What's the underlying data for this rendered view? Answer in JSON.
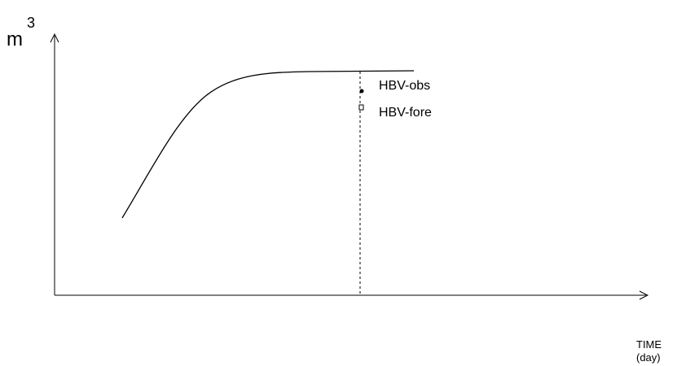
{
  "y_axis": {
    "label": "m",
    "exponent": "3"
  },
  "x_axis": {
    "label": "TIME",
    "unit": "(day)"
  },
  "legend": {
    "items": [
      "HBV-obs",
      "HBV-fore"
    ]
  }
}
